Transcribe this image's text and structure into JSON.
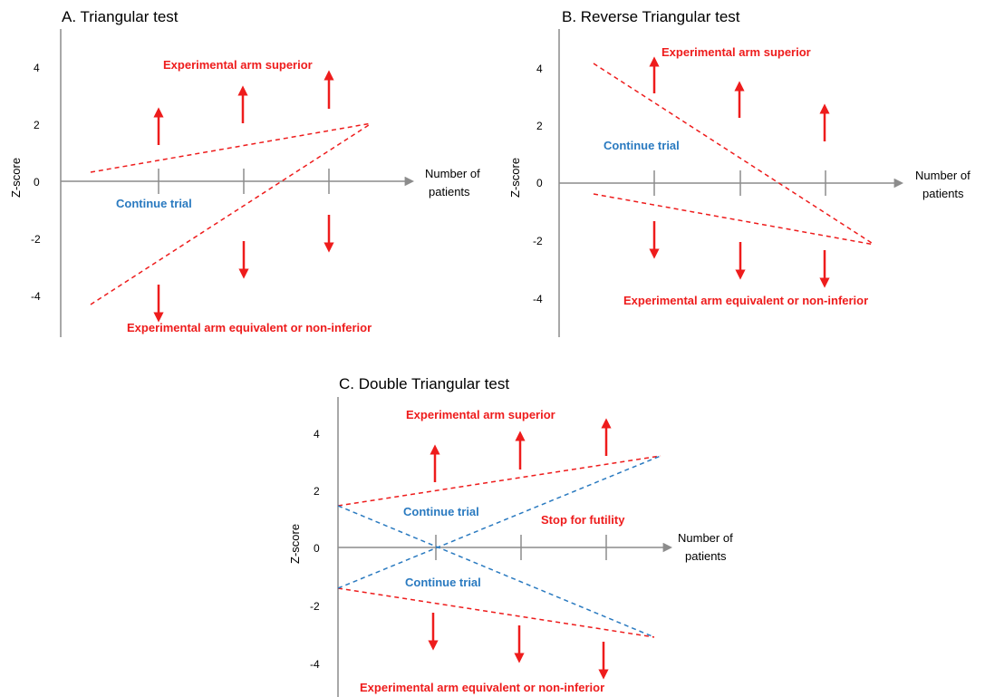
{
  "colors": {
    "red": "#ee1c1c",
    "blue": "#2a7ac0",
    "axis": "#8c8c8c",
    "text": "#000000"
  },
  "panels": [
    {
      "id": "a",
      "title": "A. Triangular test",
      "ylabel": "Z-score",
      "xlabel_line1": "Number of",
      "xlabel_line2": "patients",
      "yticks": [
        "4",
        "2",
        "0",
        "-2",
        "-4"
      ],
      "superior_label": "Experimental arm superior",
      "inferior_label": "Experimental arm equivalent or non-inferior",
      "continue_labels": [
        "Continue trial"
      ],
      "stop_label": ""
    },
    {
      "id": "b",
      "title": "B. Reverse Triangular test",
      "ylabel": "Z-score",
      "xlabel_line1": "Number of",
      "xlabel_line2": "patients",
      "yticks": [
        "4",
        "2",
        "0",
        "-2",
        "-4"
      ],
      "superior_label": "Experimental arm superior",
      "inferior_label": "Experimental arm equivalent or non-inferior",
      "continue_labels": [
        "Continue trial"
      ],
      "stop_label": ""
    },
    {
      "id": "c",
      "title": "C. Double Triangular test",
      "ylabel": "Z-score",
      "xlabel_line1": "Number of",
      "xlabel_line2": "patients",
      "yticks": [
        "4",
        "2",
        "0",
        "-2",
        "-4"
      ],
      "superior_label": "Experimental arm superior",
      "inferior_label": "Experimental arm equivalent or non-inferior",
      "continue_labels": [
        "Continue trial",
        "Continue trial"
      ],
      "stop_label": "Stop for futility"
    }
  ]
}
